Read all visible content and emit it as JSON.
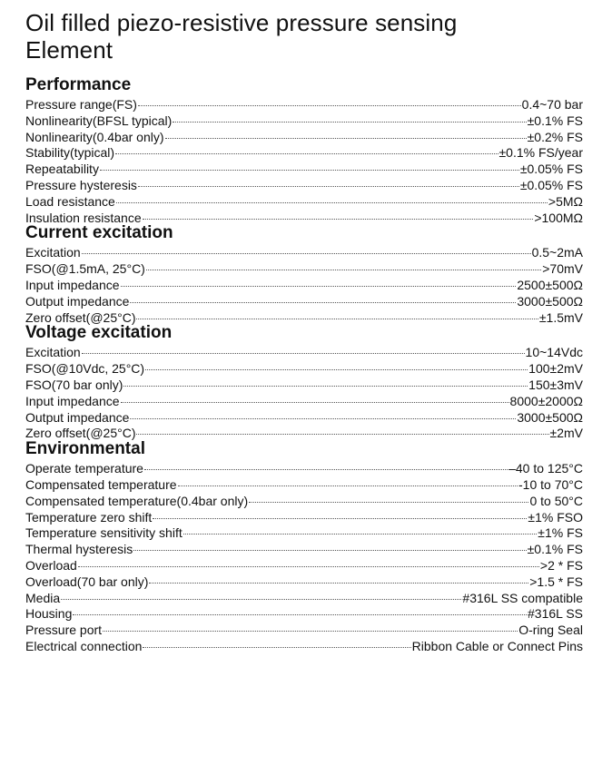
{
  "title_line1": "Oil filled piezo-resistive pressure sensing",
  "title_line2": "Element",
  "sections": [
    {
      "heading": "Performance",
      "rows": [
        {
          "label": "Pressure range(FS)",
          "value": "0.4~70 bar"
        },
        {
          "label": "Nonlinearity(BFSL typical)",
          "value": "±0.1% FS"
        },
        {
          "label": "Nonlinearity(0.4bar only)",
          "value": "±0.2% FS"
        },
        {
          "label": "Stability(typical)",
          "value": "±0.1% FS/year"
        },
        {
          "label": "Repeatability",
          "value": "±0.05% FS"
        },
        {
          "label": "Pressure hysteresis",
          "value": "±0.05% FS"
        },
        {
          "label": "Load resistance",
          "value": ">5MΩ"
        },
        {
          "label": "Insulation resistance",
          "value": ">100MΩ"
        }
      ]
    },
    {
      "heading": "Current excitation",
      "rows": [
        {
          "label": "Excitation",
          "value": "0.5~2mA"
        },
        {
          "label": "FSO(@1.5mA, 25°C)",
          "value": ">70mV"
        },
        {
          "label": "Input impedance",
          "value": "2500±500Ω"
        },
        {
          "label": "Output impedance",
          "value": "3000±500Ω"
        },
        {
          "label": "Zero offset(@25°C)",
          "value": "±1.5mV"
        }
      ]
    },
    {
      "heading": "Voltage excitation",
      "rows": [
        {
          "label": "Excitation",
          "value": "10~14Vdc"
        },
        {
          "label": "FSO(@10Vdc, 25°C)",
          "value": "100±2mV"
        },
        {
          "label": "FSO(70 bar only)",
          "value": "150±3mV"
        },
        {
          "label": "Input impedance",
          "value": "8000±2000Ω"
        },
        {
          "label": "Output impedance",
          "value": "3000±500Ω"
        },
        {
          "label": "Zero offset(@25°C)",
          "value": "±2mV"
        }
      ]
    },
    {
      "heading": "Environmental",
      "rows": [
        {
          "label": "Operate temperature",
          "value": "–40 to 125°C"
        },
        {
          "label": "Compensated temperature",
          "value": "-10 to 70°C"
        },
        {
          "label": "Compensated temperature(0.4bar only)",
          "value": "0 to 50°C"
        },
        {
          "label": "Temperature zero shift",
          "value": "±1% FSO"
        },
        {
          "label": "Temperature sensitivity shift",
          "value": "±1% FS"
        },
        {
          "label": "Thermal hysteresis",
          "value": "±0.1% FS"
        },
        {
          "label": "Overload",
          "value": ">2 * FS"
        },
        {
          "label": "Overload(70 bar only)",
          "value": ">1.5 * FS"
        },
        {
          "label": "Media",
          "value": "#316L SS compatible"
        },
        {
          "label": "Housing",
          "value": "#316L SS"
        },
        {
          "label": "Pressure port",
          "value": "O-ring Seal"
        },
        {
          "label": "Electrical connection",
          "value": "Ribbon Cable or Connect Pins"
        }
      ]
    }
  ]
}
